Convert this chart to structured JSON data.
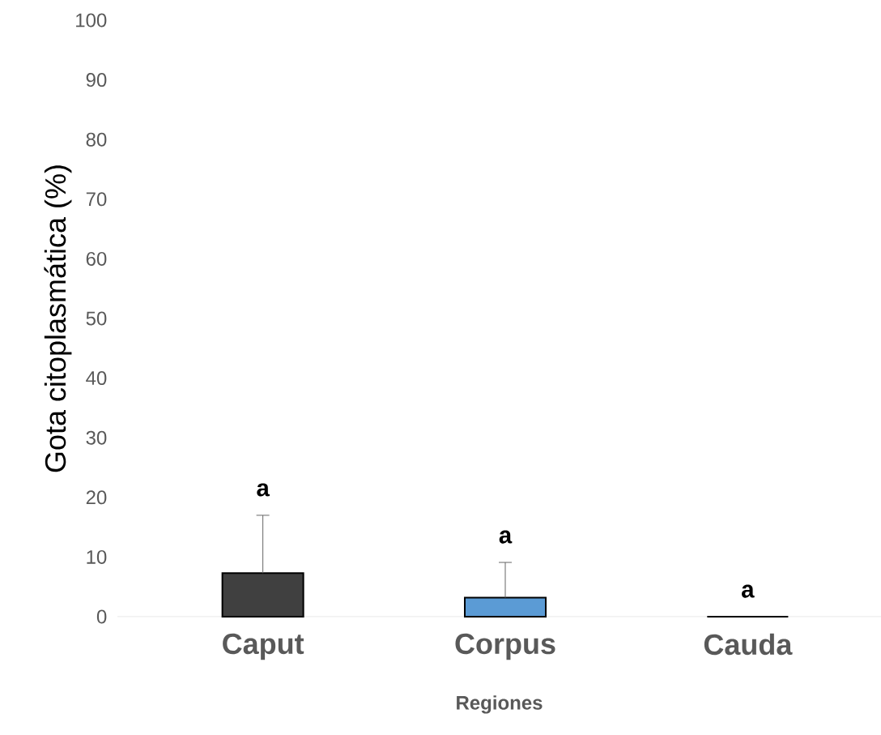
{
  "chart_data": {
    "type": "bar",
    "ylabel": "Gota citoplasmática (%)",
    "xlabel": "Regiones",
    "categories": [
      "Caput",
      "Corpus",
      "Cauda"
    ],
    "values": [
      7.3,
      3.2,
      0
    ],
    "colors": [
      "#404040",
      "#5b9bd5",
      "#000000"
    ],
    "errors": [
      [
        7.3,
        17
      ],
      [
        3.2,
        9.1
      ],
      null
    ],
    "ylim": [
      0,
      100
    ],
    "yticks": [
      0,
      10,
      20,
      30,
      40,
      50,
      60,
      70,
      80,
      90,
      100
    ],
    "grid": false,
    "annotations": [
      "a",
      "a",
      "a"
    ]
  }
}
